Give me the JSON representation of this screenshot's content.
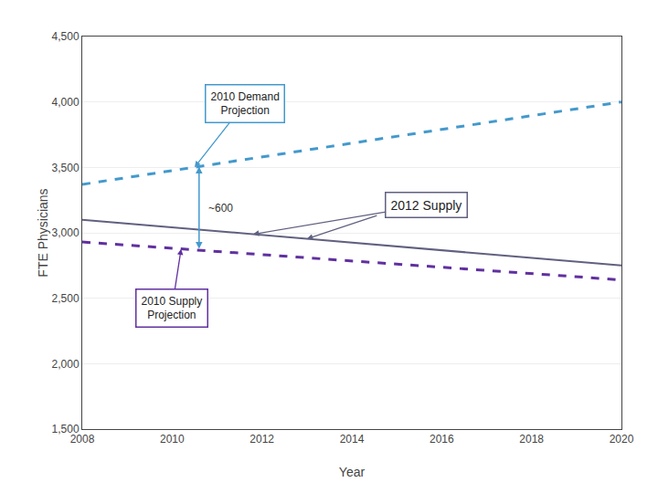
{
  "chart_data": {
    "type": "line",
    "xlabel": "Year",
    "ylabel": "FTE Physicians",
    "x": [
      2008,
      2020
    ],
    "series": [
      {
        "color": "#4499cc",
        "line_style": "dashed",
        "values": [
          3370,
          4000
        ]
      },
      {
        "color": "#6030a0",
        "line_style": "dashed",
        "values": [
          2930,
          2640
        ]
      },
      {
        "color": "#606080",
        "line_style": "solid",
        "values": [
          3100,
          2750
        ]
      }
    ],
    "annotations": [
      "2010 Demand\nProjection",
      "2010 Supply\nProjection",
      "2012 Supply",
      "~600"
    ],
    "xlim": [
      2008,
      2020
    ],
    "ylim": [
      1500,
      4500
    ],
    "xticks": [
      2008,
      2010,
      2012,
      2014,
      2016,
      2018,
      2020
    ],
    "yticks": [
      {
        "value": 1500,
        "label": "1,500"
      },
      {
        "value": 2000,
        "label": "2,000"
      },
      {
        "value": 2500,
        "label": "2,500"
      },
      {
        "value": 3000,
        "label": "3,000"
      },
      {
        "value": 3500,
        "label": "3,500"
      },
      {
        "value": 4000,
        "label": "4,000"
      },
      {
        "value": 4500,
        "label": "4,500"
      }
    ],
    "grid": true
  }
}
